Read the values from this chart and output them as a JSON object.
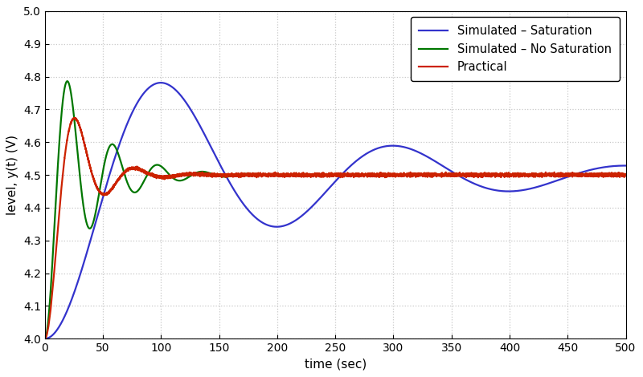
{
  "xlim": [
    0,
    500
  ],
  "ylim": [
    4.0,
    5.0
  ],
  "xlabel": "time (sec)",
  "ylabel": "level, y(t) (V)",
  "xticks": [
    0,
    50,
    100,
    150,
    200,
    250,
    300,
    350,
    400,
    450,
    500
  ],
  "yticks": [
    4.0,
    4.1,
    4.2,
    4.3,
    4.4,
    4.5,
    4.6,
    4.7,
    4.8,
    4.9,
    5.0
  ],
  "grid_color": "#c8c8c8",
  "background_color": "#ffffff",
  "legend": [
    "Simulated – Saturation",
    "Simulated – No Saturation",
    "Practical"
  ],
  "colors": {
    "saturation": "#3333cc",
    "no_saturation": "#007700",
    "practical": "#cc2200"
  },
  "linewidth": 1.6,
  "setpoint": 4.5,
  "t_end": 500,
  "blue_omega_n": 0.032,
  "blue_zeta": 0.18,
  "green_omega_n": 0.165,
  "green_zeta": 0.175,
  "red_omega_n": 0.13,
  "red_zeta": 0.32
}
